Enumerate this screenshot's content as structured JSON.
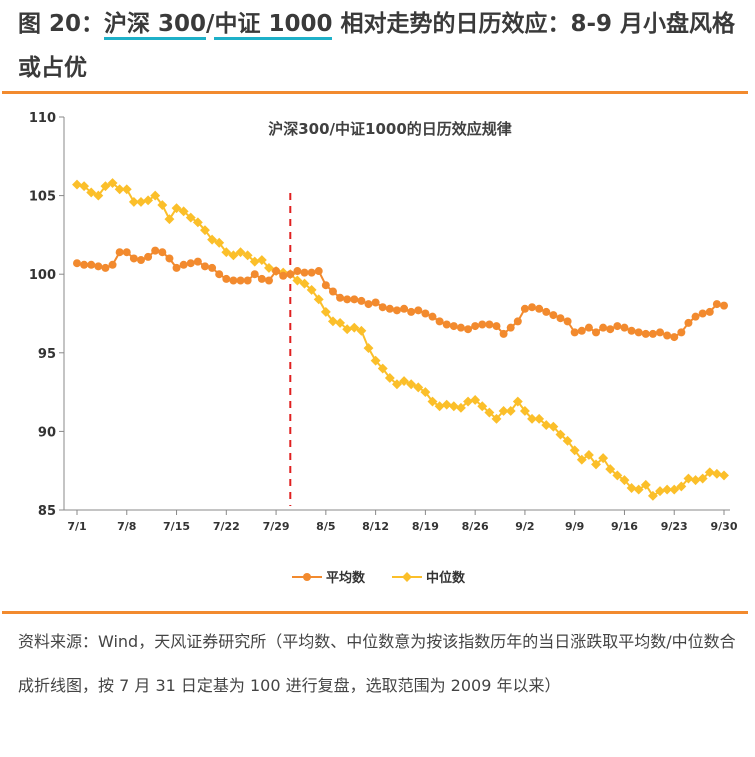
{
  "title": {
    "prefix": "图 20：",
    "link1": "沪深 300",
    "sep": "/",
    "link2": "中证 1000",
    "rest": " 相对走势的日历效应：8-9 月小盘风格或占优"
  },
  "source": "资料来源：Wind，天风证券研究所（平均数、中位数意为按该指数历年的当日涨跌取平均数/中位数合成折线图，按 7 月 31 日定基为 100 进行复盘，选取范围为 2009 年以来）",
  "colors": {
    "accent": "#f28a2e",
    "link_underline": "#1eb0c8",
    "avg": "#f28a2e",
    "median": "#fbbf2a",
    "base_line": "#e02020"
  },
  "chart_data": {
    "type": "line",
    "title": "沪深300/中证1000的日历效应规律",
    "x_range": [
      "7/1",
      "9/30"
    ],
    "x_ticks": [
      "7/1",
      "7/8",
      "7/15",
      "7/22",
      "7/29",
      "8/5",
      "8/12",
      "8/19",
      "8/26",
      "9/2",
      "9/9",
      "9/16",
      "9/23",
      "9/30"
    ],
    "y_ticks": [
      85,
      90,
      95,
      100,
      105,
      110
    ],
    "ylim": [
      85,
      110
    ],
    "base_date": "7/31",
    "legend_position": "bottom",
    "series": [
      {
        "name": "平均数",
        "marker": "circle",
        "values": [
          100.7,
          100.6,
          100.6,
          100.5,
          100.4,
          100.6,
          101.4,
          101.4,
          101.0,
          100.9,
          101.1,
          101.5,
          101.4,
          101.0,
          100.4,
          100.6,
          100.7,
          100.8,
          100.5,
          100.4,
          100.0,
          99.7,
          99.6,
          99.6,
          99.6,
          100.0,
          99.7,
          99.6,
          100.2,
          99.9,
          100.0,
          100.2,
          100.1,
          100.1,
          100.2,
          99.3,
          98.9,
          98.5,
          98.4,
          98.4,
          98.3,
          98.1,
          98.2,
          97.9,
          97.8,
          97.7,
          97.8,
          97.6,
          97.7,
          97.5,
          97.3,
          97.0,
          96.8,
          96.7,
          96.6,
          96.5,
          96.7,
          96.8,
          96.8,
          96.7,
          96.2,
          96.6,
          97.0,
          97.8,
          97.9,
          97.8,
          97.6,
          97.4,
          97.2,
          97.0,
          96.3,
          96.4,
          96.6,
          96.3,
          96.6,
          96.5,
          96.7,
          96.6,
          96.4,
          96.3,
          96.2,
          96.2,
          96.3,
          96.1,
          96.0,
          96.3,
          96.9,
          97.3,
          97.5,
          97.6,
          98.1,
          98.0
        ]
      },
      {
        "name": "中位数",
        "marker": "diamond",
        "values": [
          105.7,
          105.6,
          105.2,
          105.0,
          105.6,
          105.8,
          105.4,
          105.4,
          104.6,
          104.6,
          104.7,
          105.0,
          104.4,
          103.5,
          104.2,
          104.0,
          103.6,
          103.3,
          102.8,
          102.2,
          102.0,
          101.4,
          101.2,
          101.4,
          101.2,
          100.8,
          100.9,
          100.4,
          100.2,
          100.1,
          100.0,
          99.6,
          99.4,
          99.0,
          98.4,
          97.6,
          97.0,
          96.9,
          96.5,
          96.6,
          96.4,
          95.3,
          94.5,
          94.0,
          93.4,
          93.0,
          93.2,
          93.0,
          92.8,
          92.5,
          91.9,
          91.6,
          91.7,
          91.6,
          91.5,
          91.9,
          92.0,
          91.6,
          91.2,
          90.8,
          91.3,
          91.3,
          91.9,
          91.3,
          90.8,
          90.8,
          90.4,
          90.3,
          89.8,
          89.4,
          88.8,
          88.2,
          88.5,
          87.9,
          88.3,
          87.6,
          87.2,
          86.9,
          86.4,
          86.3,
          86.6,
          85.9,
          86.2,
          86.3,
          86.3,
          86.5,
          87.0,
          86.9,
          87.0,
          87.4,
          87.3,
          87.2
        ]
      }
    ]
  }
}
